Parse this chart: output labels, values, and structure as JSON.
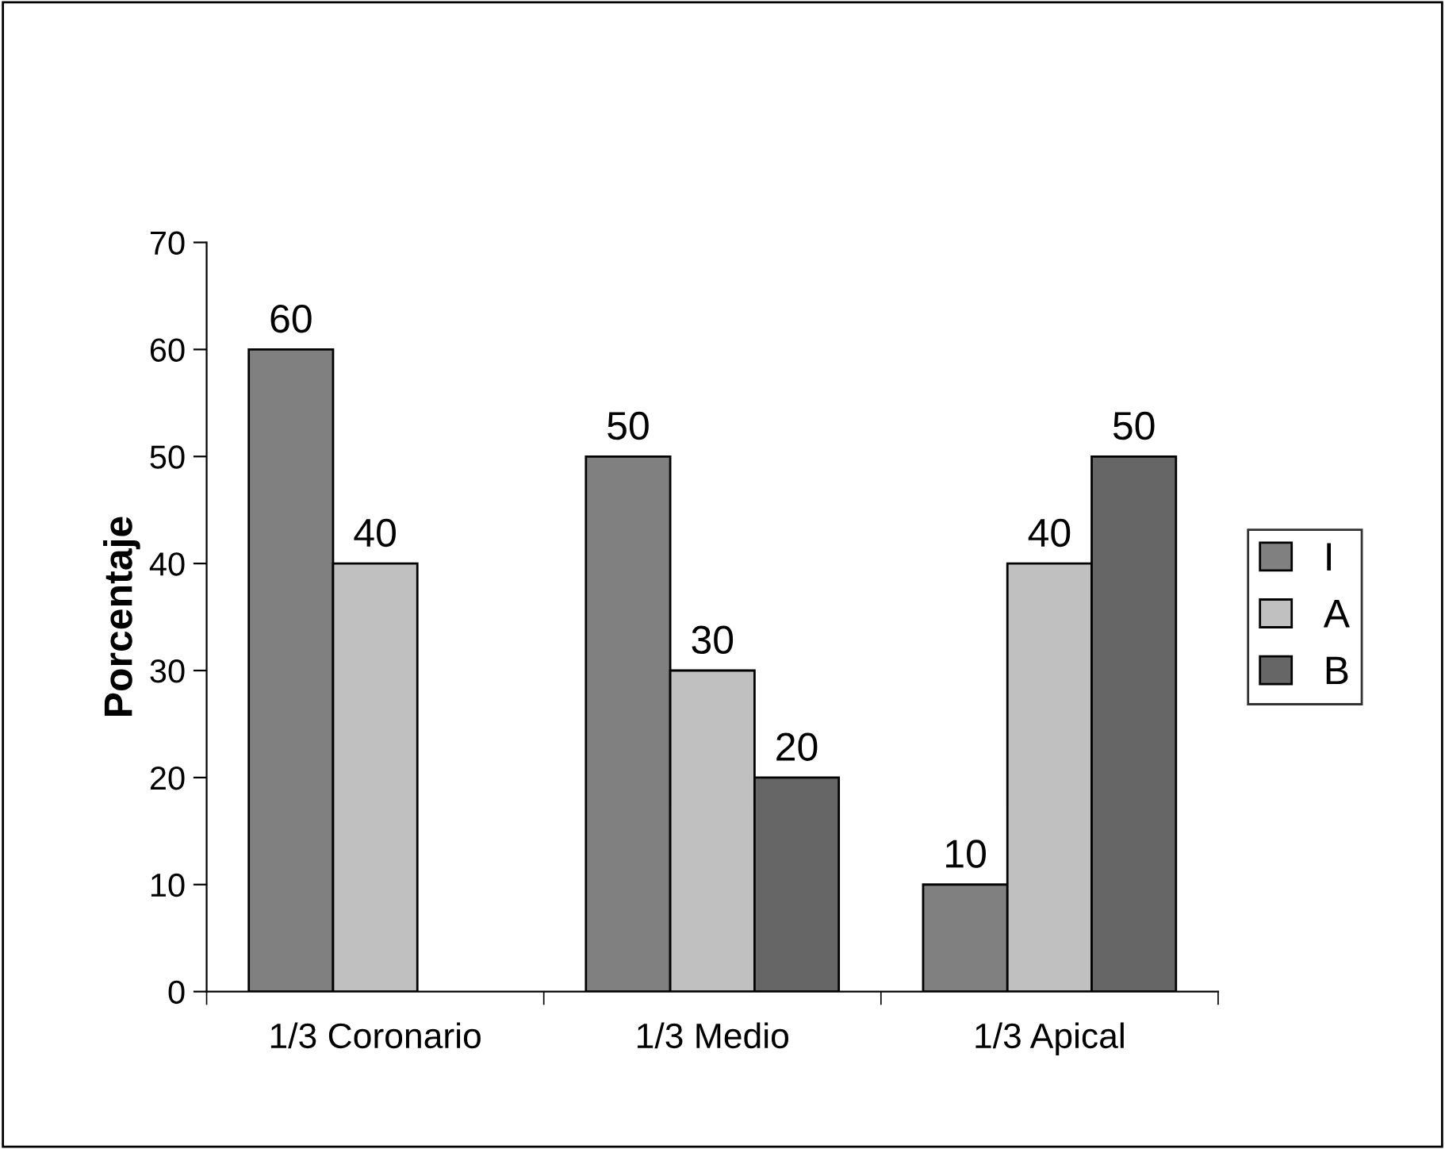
{
  "chart_data": {
    "type": "bar",
    "ylabel": "Porcentaje",
    "categories": [
      "1/3 Coronario",
      "1/3 Medio",
      "1/3 Apical"
    ],
    "series": [
      {
        "name": "I",
        "color": "#808080",
        "values": [
          60,
          50,
          10
        ]
      },
      {
        "name": "A",
        "color": "#c0c0c0",
        "values": [
          40,
          30,
          40
        ]
      },
      {
        "name": "B",
        "color": "#666666",
        "values": [
          null,
          20,
          50
        ]
      }
    ],
    "ylim": [
      0,
      70
    ],
    "yticks": [
      0,
      10,
      20,
      30,
      40,
      50,
      60,
      70
    ],
    "data_labels": true,
    "grid": false,
    "legend": "right"
  }
}
